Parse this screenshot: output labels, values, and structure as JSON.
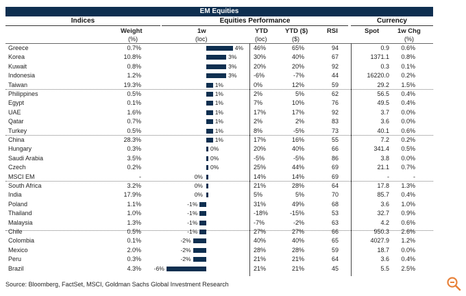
{
  "title": "EM Equities",
  "group_headers": {
    "indices": "Indices",
    "performance": "Equities Performance",
    "currency": "Currency"
  },
  "columns": {
    "weight": "Weight",
    "weight_unit": "(%)",
    "w1": "1w",
    "w1_unit": "(loc)",
    "ytd": "YTD",
    "ytd_unit": "(loc)",
    "ytd_usd": "YTD ($)",
    "ytd_usd_unit": "($)",
    "rsi": "RSI",
    "spot": "Spot",
    "chg": "1w Chg",
    "chg_unit": "(%)"
  },
  "source": "Source: Bloomberg, FactSet, MSCI, Goldman Sachs Global Investment Research",
  "chart_data": {
    "type": "bar",
    "orientation": "horizontal",
    "title": "EM Equities",
    "series_name": "1w (loc)",
    "unit": "%",
    "xlim": [
      -6,
      4
    ],
    "categories": [
      "Greece",
      "Korea",
      "Kuwait",
      "Indonesia",
      "Taiwan",
      "Philippines",
      "Egypt",
      "UAE",
      "Qatar",
      "Turkey",
      "China",
      "Hungary",
      "Saudi Arabia",
      "Czech",
      "MSCI EM",
      "South Africa",
      "India",
      "Poland",
      "Thailand",
      "Malaysia",
      "Chile",
      "Colombia",
      "Mexico",
      "Peru",
      "Brazil"
    ],
    "values": [
      4,
      3,
      3,
      3,
      1,
      1,
      1,
      1,
      1,
      1,
      1,
      0,
      0,
      0,
      0,
      0,
      0,
      -1,
      -1,
      -1,
      -1,
      -2,
      -2,
      -2,
      -6
    ],
    "value_labels": [
      "4%",
      "3%",
      "3%",
      "3%",
      "1%",
      "1%",
      "1%",
      "1%",
      "1%",
      "1%",
      "1%",
      "0%",
      "0%",
      "0%",
      "0%",
      "0%",
      "0%",
      "-1%",
      "-1%",
      "-1%",
      "-1%",
      "-2%",
      "-2%",
      "-2%",
      "-6%"
    ]
  },
  "rows": [
    {
      "name": "Greece",
      "weight": "0.7%",
      "ytd": "46%",
      "ytd_usd": "65%",
      "rsi": "94",
      "spot": "0.9",
      "chg": "0.6%"
    },
    {
      "name": "Korea",
      "weight": "10.8%",
      "ytd": "30%",
      "ytd_usd": "40%",
      "rsi": "67",
      "spot": "1371.1",
      "chg": "0.8%"
    },
    {
      "name": "Kuwait",
      "weight": "0.8%",
      "ytd": "20%",
      "ytd_usd": "20%",
      "rsi": "92",
      "spot": "0.3",
      "chg": "0.1%"
    },
    {
      "name": "Indonesia",
      "weight": "1.2%",
      "ytd": "-6%",
      "ytd_usd": "-7%",
      "rsi": "44",
      "spot": "16220.0",
      "chg": "0.2%"
    },
    {
      "name": "Taiwan",
      "weight": "19.3%",
      "ytd": "0%",
      "ytd_usd": "12%",
      "rsi": "59",
      "spot": "29.2",
      "chg": "1.5%"
    },
    {
      "name": "Philippines",
      "weight": "0.5%",
      "ytd": "2%",
      "ytd_usd": "5%",
      "rsi": "62",
      "spot": "56.5",
      "chg": "0.4%"
    },
    {
      "name": "Egypt",
      "weight": "0.1%",
      "ytd": "7%",
      "ytd_usd": "10%",
      "rsi": "76",
      "spot": "49.5",
      "chg": "0.4%"
    },
    {
      "name": "UAE",
      "weight": "1.6%",
      "ytd": "17%",
      "ytd_usd": "17%",
      "rsi": "92",
      "spot": "3.7",
      "chg": "0.0%"
    },
    {
      "name": "Qatar",
      "weight": "0.7%",
      "ytd": "2%",
      "ytd_usd": "2%",
      "rsi": "83",
      "spot": "3.6",
      "chg": "0.0%"
    },
    {
      "name": "Turkey",
      "weight": "0.5%",
      "ytd": "8%",
      "ytd_usd": "-5%",
      "rsi": "73",
      "spot": "40.1",
      "chg": "0.6%"
    },
    {
      "name": "China",
      "weight": "28.3%",
      "ytd": "17%",
      "ytd_usd": "16%",
      "rsi": "55",
      "spot": "7.2",
      "chg": "0.2%"
    },
    {
      "name": "Hungary",
      "weight": "0.3%",
      "ytd": "20%",
      "ytd_usd": "40%",
      "rsi": "66",
      "spot": "341.4",
      "chg": "0.5%"
    },
    {
      "name": "Saudi Arabia",
      "weight": "3.5%",
      "ytd": "-5%",
      "ytd_usd": "-5%",
      "rsi": "86",
      "spot": "3.8",
      "chg": "0.0%"
    },
    {
      "name": "Czech",
      "weight": "0.2%",
      "ytd": "25%",
      "ytd_usd": "44%",
      "rsi": "69",
      "spot": "21.1",
      "chg": "0.7%"
    },
    {
      "name": "MSCI EM",
      "weight": "-",
      "ytd": "14%",
      "ytd_usd": "14%",
      "rsi": "69",
      "spot": "-",
      "chg": "-"
    },
    {
      "name": "South Africa",
      "weight": "3.2%",
      "ytd": "21%",
      "ytd_usd": "28%",
      "rsi": "64",
      "spot": "17.8",
      "chg": "1.3%"
    },
    {
      "name": "India",
      "weight": "17.9%",
      "ytd": "5%",
      "ytd_usd": "5%",
      "rsi": "70",
      "spot": "85.7",
      "chg": "0.4%"
    },
    {
      "name": "Poland",
      "weight": "1.1%",
      "ytd": "31%",
      "ytd_usd": "49%",
      "rsi": "68",
      "spot": "3.6",
      "chg": "1.0%"
    },
    {
      "name": "Thailand",
      "weight": "1.0%",
      "ytd": "-18%",
      "ytd_usd": "-15%",
      "rsi": "53",
      "spot": "32.7",
      "chg": "0.9%"
    },
    {
      "name": "Malaysia",
      "weight": "1.3%",
      "ytd": "-7%",
      "ytd_usd": "-2%",
      "rsi": "63",
      "spot": "4.2",
      "chg": "0.6%"
    },
    {
      "name": "Chile",
      "weight": "0.5%",
      "ytd": "27%",
      "ytd_usd": "27%",
      "rsi": "66",
      "spot": "950.3",
      "chg": "2.6%"
    },
    {
      "name": "Colombia",
      "weight": "0.1%",
      "ytd": "40%",
      "ytd_usd": "40%",
      "rsi": "65",
      "spot": "4027.9",
      "chg": "1.2%"
    },
    {
      "name": "Mexico",
      "weight": "2.0%",
      "ytd": "28%",
      "ytd_usd": "28%",
      "rsi": "59",
      "spot": "18.7",
      "chg": "0.0%"
    },
    {
      "name": "Peru",
      "weight": "0.3%",
      "ytd": "21%",
      "ytd_usd": "21%",
      "rsi": "64",
      "spot": "3.6",
      "chg": "0.4%"
    },
    {
      "name": "Brazil",
      "weight": "4.3%",
      "ytd": "21%",
      "ytd_usd": "21%",
      "rsi": "45",
      "spot": "5.5",
      "chg": "2.5%"
    }
  ]
}
